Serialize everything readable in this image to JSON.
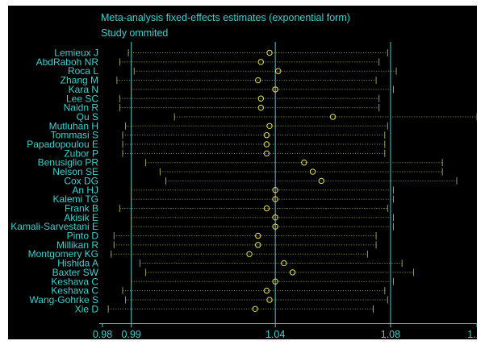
{
  "chart_data": {
    "type": "forest",
    "title": "Meta-analysis fixed-effects estimates (exponential form)",
    "subtitle": "Study ommited",
    "xlim": [
      0.98,
      1.11
    ],
    "x_ticks": [
      0.98,
      0.99,
      1.04,
      1.08,
      1.11
    ],
    "x_tick_labels": [
      "0.98",
      "0.99",
      "1.04",
      "1.08",
      "1.11"
    ],
    "reference_lines": [
      0.99,
      1.04,
      1.08
    ],
    "studies": [
      {
        "label": "Lemieux J",
        "estimate": 1.038,
        "lower": 0.989,
        "upper": 1.079
      },
      {
        "label": "AbdRaboh NR",
        "estimate": 1.035,
        "lower": 0.986,
        "upper": 1.076
      },
      {
        "label": "Roca L",
        "estimate": 1.041,
        "lower": 0.991,
        "upper": 1.082
      },
      {
        "label": "Zhang M",
        "estimate": 1.034,
        "lower": 0.985,
        "upper": 1.075
      },
      {
        "label": "Kara N",
        "estimate": 1.04,
        "lower": 0.99,
        "upper": 1.081
      },
      {
        "label": "Lee SC",
        "estimate": 1.035,
        "lower": 0.986,
        "upper": 1.076
      },
      {
        "label": "Naidn R",
        "estimate": 1.035,
        "lower": 0.986,
        "upper": 1.076
      },
      {
        "label": "Qu S",
        "estimate": 1.06,
        "lower": 1.005,
        "upper": 1.11
      },
      {
        "label": "Mutluhan H",
        "estimate": 1.038,
        "lower": 0.988,
        "upper": 1.079
      },
      {
        "label": "Tommasi S",
        "estimate": 1.037,
        "lower": 0.987,
        "upper": 1.078
      },
      {
        "label": "Papadopoulou E",
        "estimate": 1.037,
        "lower": 0.987,
        "upper": 1.078
      },
      {
        "label": "Zubor P",
        "estimate": 1.037,
        "lower": 0.987,
        "upper": 1.078
      },
      {
        "label": "Benusiglio PR",
        "estimate": 1.05,
        "lower": 0.995,
        "upper": 1.098
      },
      {
        "label": "Nelson SE",
        "estimate": 1.053,
        "lower": 1.0,
        "upper": 1.098
      },
      {
        "label": "Cox DG",
        "estimate": 1.056,
        "lower": 1.002,
        "upper": 1.103
      },
      {
        "label": "An HJ",
        "estimate": 1.04,
        "lower": 0.99,
        "upper": 1.081
      },
      {
        "label": "Kalemi TG",
        "estimate": 1.04,
        "lower": 0.99,
        "upper": 1.081
      },
      {
        "label": "Frank B",
        "estimate": 1.037,
        "lower": 0.986,
        "upper": 1.079
      },
      {
        "label": "Akisik E",
        "estimate": 1.04,
        "lower": 0.99,
        "upper": 1.081
      },
      {
        "label": "Kamali-Sarvestani E",
        "estimate": 1.04,
        "lower": 0.99,
        "upper": 1.081
      },
      {
        "label": "Pinto D",
        "estimate": 1.034,
        "lower": 0.984,
        "upper": 1.075
      },
      {
        "label": "Millikan R",
        "estimate": 1.034,
        "lower": 0.984,
        "upper": 1.075
      },
      {
        "label": "Montgomery KG",
        "estimate": 1.031,
        "lower": 0.983,
        "upper": 1.072
      },
      {
        "label": "Hishida A",
        "estimate": 1.043,
        "lower": 0.993,
        "upper": 1.084
      },
      {
        "label": "Baxter SW",
        "estimate": 1.046,
        "lower": 0.995,
        "upper": 1.088
      },
      {
        "label": "Keshava C",
        "estimate": 1.04,
        "lower": 0.99,
        "upper": 1.081
      },
      {
        "label": "Keshava C",
        "estimate": 1.037,
        "lower": 0.987,
        "upper": 1.078
      },
      {
        "label": "Wang-Gohrke S",
        "estimate": 1.038,
        "lower": 0.988,
        "upper": 1.079
      },
      {
        "label": "Xie D",
        "estimate": 1.033,
        "lower": 0.982,
        "upper": 1.074
      }
    ]
  },
  "colors": {
    "background": "#000000",
    "text": "#3fd0d0",
    "reference_line": "#3fd0d0",
    "ci_line": "#9a9a5a",
    "marker": "#e6e05a"
  }
}
